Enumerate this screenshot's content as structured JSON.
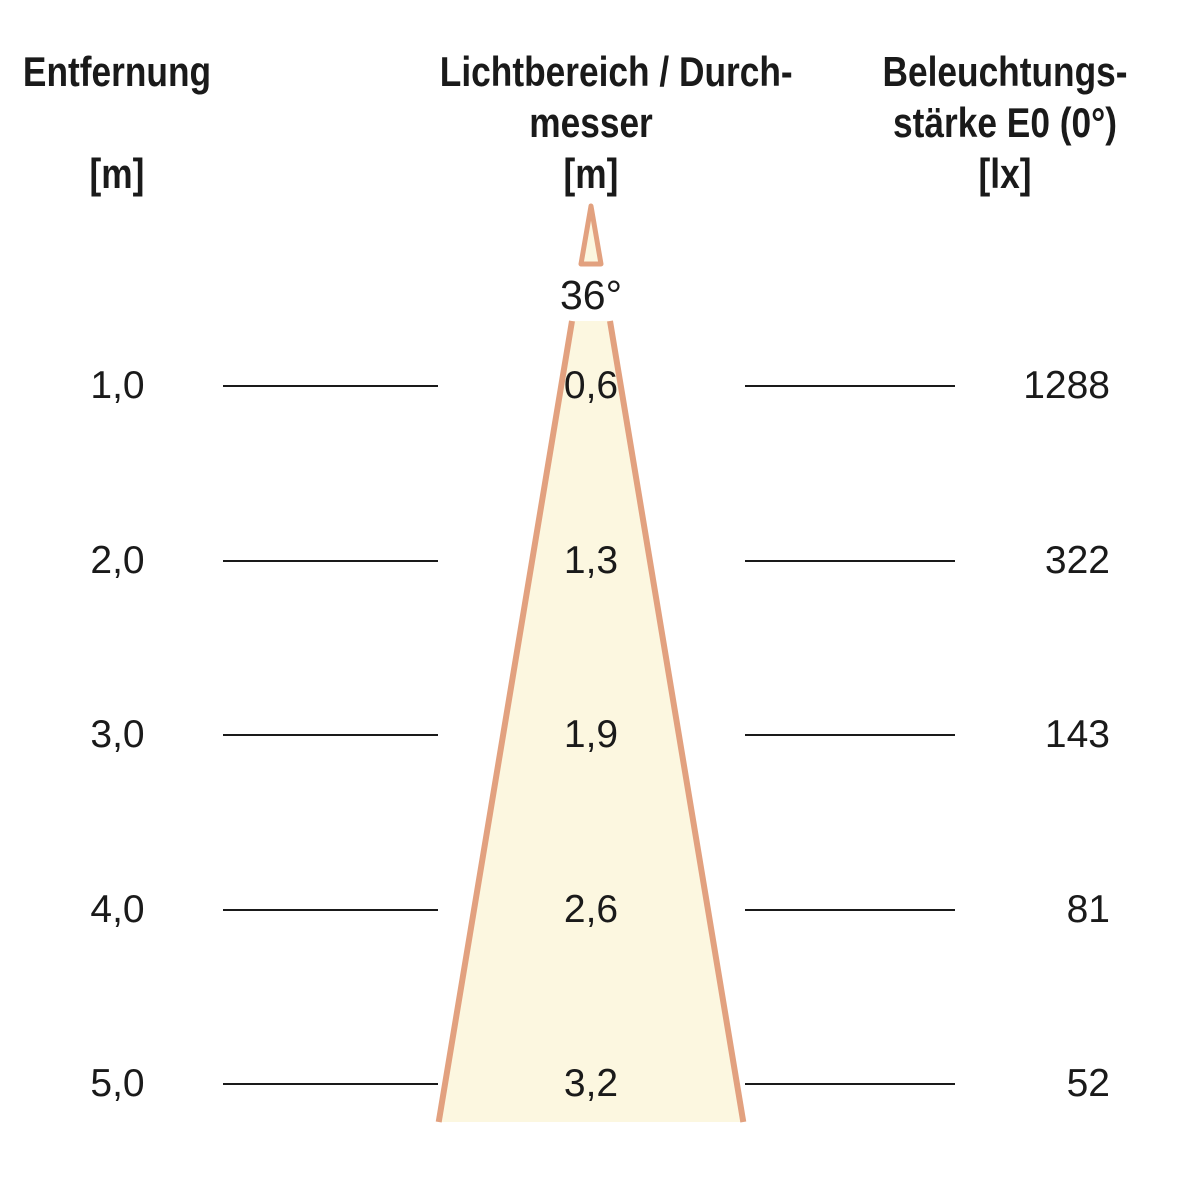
{
  "columns": {
    "distance": {
      "title": "Entfernung",
      "unit": "[m]"
    },
    "beam": {
      "title_line1": "Lichtbereich / Durch-",
      "title_line2": "messer",
      "unit": "[m]"
    },
    "illuminance": {
      "title_line1": "Beleuchtungs-",
      "title_line2": "stärke E0 (0°)",
      "unit": "[lx]"
    }
  },
  "beam_angle": "36°",
  "rows": [
    {
      "distance": "1,0",
      "diameter": "0,6",
      "illuminance": "1288"
    },
    {
      "distance": "2,0",
      "diameter": "1,3",
      "illuminance": "322"
    },
    {
      "distance": "3,0",
      "diameter": "1,9",
      "illuminance": "143"
    },
    {
      "distance": "4,0",
      "diameter": "2,6",
      "illuminance": "81"
    },
    {
      "distance": "5,0",
      "diameter": "3,2",
      "illuminance": "52"
    }
  ],
  "chart_data": {
    "type": "table",
    "title": "Beam cone diagram 36°",
    "columns": [
      "Entfernung [m]",
      "Lichtbereich / Durchmesser [m]",
      "Beleuchtungsstärke E0 (0°) [lx]"
    ],
    "values": [
      [
        1.0,
        0.6,
        1288
      ],
      [
        2.0,
        1.3,
        322
      ],
      [
        3.0,
        1.9,
        143
      ],
      [
        4.0,
        2.6,
        81
      ],
      [
        5.0,
        3.2,
        52
      ]
    ],
    "beam_angle_deg": 36
  },
  "colors": {
    "cone_fill": "#FCF7E0",
    "cone_stroke": "#E2A17F",
    "rule_line": "#1A1A1A",
    "text": "#1A1A1A"
  }
}
